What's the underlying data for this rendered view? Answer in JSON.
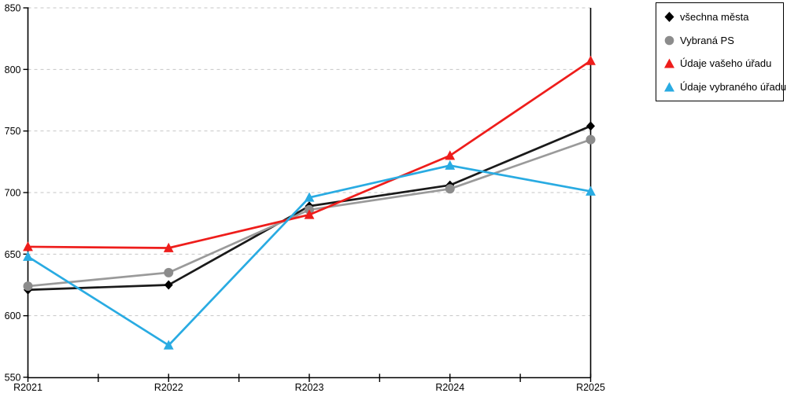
{
  "chart_data": {
    "type": "line",
    "title": "",
    "xlabel": "",
    "ylabel": "",
    "categories": [
      "R2021",
      "R2022",
      "R2023",
      "R2024",
      "R2025"
    ],
    "series": [
      {
        "name": "všechna města",
        "marker": "diamond",
        "line_color": "#1a1a1a",
        "marker_color": "#000000",
        "values": [
          621,
          625,
          689,
          706,
          754
        ]
      },
      {
        "name": "Vybraná PS",
        "marker": "circle",
        "line_color": "#9a9a9a",
        "marker_color": "#8c8c8c",
        "values": [
          624,
          635,
          686,
          703,
          743
        ]
      },
      {
        "name": "Údaje vašeho úřadu",
        "marker": "triangle",
        "line_color": "#ee1d1b",
        "marker_color": "#ee1d1b",
        "values": [
          656,
          655,
          682,
          730,
          807
        ]
      },
      {
        "name": "Údaje vybraného úřadu",
        "marker": "triangle",
        "line_color": "#29abe2",
        "marker_color": "#29abe2",
        "values": [
          648,
          576,
          696,
          722,
          701
        ]
      }
    ],
    "ylim": [
      550,
      850
    ],
    "yticks": [
      550,
      600,
      650,
      700,
      750,
      800,
      850
    ],
    "grid": "horizontal-dashed",
    "gridline_color": "#c6c6c6",
    "axis_color": "#000000",
    "legend_position": "top-right"
  }
}
